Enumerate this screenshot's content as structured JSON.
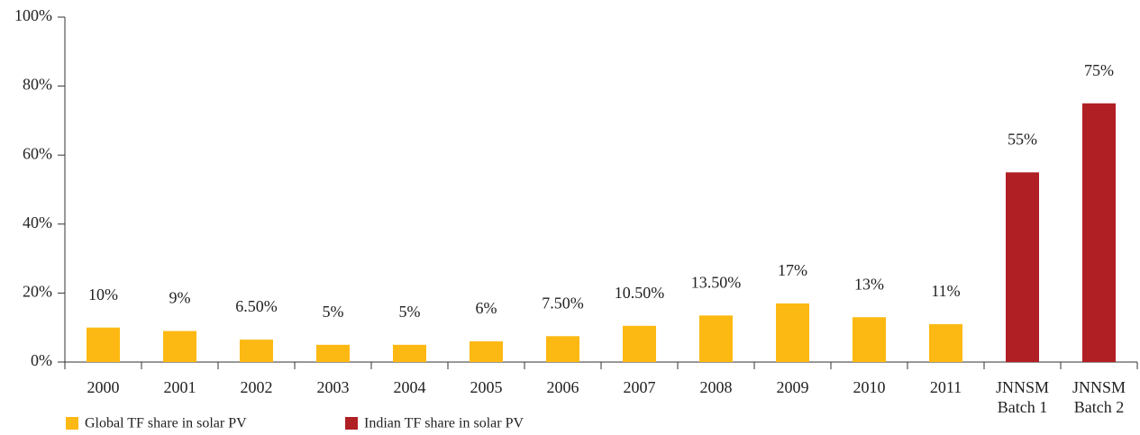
{
  "chart_data": {
    "type": "bar",
    "categories": [
      "2000",
      "2001",
      "2002",
      "2003",
      "2004",
      "2005",
      "2006",
      "2007",
      "2008",
      "2009",
      "2010",
      "2011",
      "JNNSM Batch 1",
      "JNNSM Batch 2"
    ],
    "series": [
      {
        "name": "Global TF share in solar PV",
        "color": "#fdb913",
        "values": [
          10,
          9,
          6.5,
          5,
          5,
          6,
          7.5,
          10.5,
          13.5,
          17,
          13,
          11,
          null,
          null
        ],
        "value_labels": [
          "10%",
          "9%",
          "6.50%",
          "5%",
          "5%",
          "6%",
          "7.50%",
          "10.50%",
          "13.50%",
          "17%",
          "13%",
          "11%",
          null,
          null
        ]
      },
      {
        "name": "Indian TF share in solar PV",
        "color": "#b01f24",
        "values": [
          null,
          null,
          null,
          null,
          null,
          null,
          null,
          null,
          null,
          null,
          null,
          null,
          55,
          75
        ],
        "value_labels": [
          null,
          null,
          null,
          null,
          null,
          null,
          null,
          null,
          null,
          null,
          null,
          null,
          "55%",
          "75%"
        ]
      }
    ],
    "ylim": [
      0,
      100
    ],
    "yticks": [
      {
        "value": 0,
        "label": "0%"
      },
      {
        "value": 20,
        "label": "20%"
      },
      {
        "value": 40,
        "label": "40%"
      },
      {
        "value": 60,
        "label": "60%"
      },
      {
        "value": 80,
        "label": "80%"
      },
      {
        "value": 100,
        "label": "100%"
      }
    ]
  }
}
